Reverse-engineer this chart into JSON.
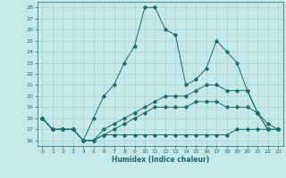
{
  "xlabel": "Humidex (Indice chaleur)",
  "ylabel": "",
  "background_color": "#c5e8e8",
  "grid_color": "#a8d0d0",
  "line_color": "#1a6b6b",
  "xlim": [
    -0.5,
    23.5
  ],
  "ylim": [
    15.5,
    28.5
  ],
  "yticks": [
    16,
    17,
    18,
    19,
    20,
    21,
    22,
    23,
    24,
    25,
    26,
    27,
    28
  ],
  "xticks": [
    0,
    1,
    2,
    3,
    4,
    5,
    6,
    7,
    8,
    9,
    10,
    11,
    12,
    13,
    14,
    15,
    16,
    17,
    18,
    19,
    20,
    21,
    22,
    23
  ],
  "series": [
    {
      "x": [
        0,
        1,
        2,
        3,
        4,
        5,
        6,
        7,
        8,
        9,
        10,
        11,
        12,
        13,
        14,
        15,
        16,
        17,
        18,
        19,
        20,
        21,
        22,
        23
      ],
      "y": [
        18,
        17,
        17,
        17,
        16,
        18,
        20,
        21,
        23,
        24.5,
        28,
        28,
        26,
        25.5,
        21,
        21.5,
        22.5,
        25,
        24,
        23,
        20.5,
        18.5,
        17.5,
        17
      ]
    },
    {
      "x": [
        0,
        1,
        2,
        3,
        4,
        5,
        6,
        7,
        8,
        9,
        10,
        11,
        12,
        13,
        14,
        15,
        16,
        17,
        18,
        19,
        20,
        21,
        22,
        23
      ],
      "y": [
        18,
        17,
        17,
        17,
        16,
        16,
        17,
        17.5,
        18,
        18.5,
        19,
        19.5,
        20,
        20,
        20,
        20.5,
        21,
        21,
        20.5,
        20.5,
        20.5,
        18.5,
        17,
        17
      ]
    },
    {
      "x": [
        0,
        1,
        2,
        3,
        4,
        5,
        6,
        7,
        8,
        9,
        10,
        11,
        12,
        13,
        14,
        15,
        16,
        17,
        18,
        19,
        20,
        21,
        22,
        23
      ],
      "y": [
        18,
        17,
        17,
        17,
        16,
        16,
        16.5,
        17,
        17.5,
        18,
        18.5,
        19,
        19,
        19,
        19,
        19.5,
        19.5,
        19.5,
        19,
        19,
        19,
        18.5,
        17,
        17
      ]
    },
    {
      "x": [
        0,
        1,
        2,
        3,
        4,
        5,
        6,
        7,
        8,
        9,
        10,
        11,
        12,
        13,
        14,
        15,
        16,
        17,
        18,
        19,
        20,
        21,
        22,
        23
      ],
      "y": [
        18,
        17,
        17,
        17,
        16,
        16,
        16.5,
        16.5,
        16.5,
        16.5,
        16.5,
        16.5,
        16.5,
        16.5,
        16.5,
        16.5,
        16.5,
        16.5,
        16.5,
        17,
        17,
        17,
        17,
        17
      ]
    }
  ]
}
